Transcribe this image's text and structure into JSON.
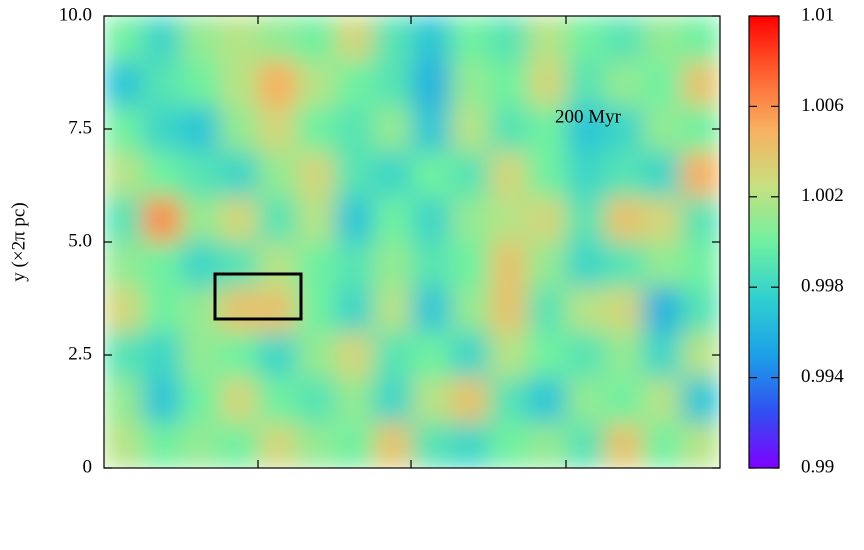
{
  "chart_data": {
    "type": "heatmap",
    "ylabel": "y (×2π pc)",
    "annotation": "200 Myr",
    "ylim": [
      0,
      10
    ],
    "yticks": [
      0,
      2.5,
      {
        "value": 5,
        "label": "5.0"
      },
      7.5,
      {
        "value": 10,
        "label": "10.0"
      }
    ],
    "zlim": [
      0.99,
      1.01
    ],
    "zticks": [
      0.99,
      0.994,
      0.998,
      1.002,
      1.006,
      1.01
    ],
    "colorscale": [
      "#7f00ff",
      "#3050f0",
      "#1ca0e8",
      "#30d0d0",
      "#70f0a0",
      "#c8e080",
      "#f8b060",
      "#ff6030",
      "#ff0000"
    ],
    "z": [
      [
        1.0,
        0.998,
        1.001,
        1.002,
        1.001,
        1.0,
        1.003,
        0.999,
        0.997,
        1.0,
        0.999,
        1.002,
        1.0,
        0.999,
        1.001,
        1.0
      ],
      [
        0.997,
        0.999,
        1.0,
        1.002,
        1.005,
        1.002,
        1.0,
        0.999,
        0.996,
        1.001,
        1.0,
        1.003,
        0.999,
        1.001,
        1.0,
        1.004
      ],
      [
        1.0,
        0.998,
        0.997,
        1.001,
        1.003,
        1.0,
        0.999,
        1.001,
        0.997,
        1.002,
        0.999,
        1.0,
        0.997,
        0.998,
        1.001,
        1.0
      ],
      [
        1.002,
        1.0,
        0.999,
        0.998,
        1.001,
        1.003,
        0.999,
        0.998,
        1.0,
        0.999,
        1.003,
        1.0,
        0.998,
        0.999,
        0.998,
        1.005
      ],
      [
        0.999,
        1.006,
        1.001,
        1.003,
        0.999,
        1.002,
        0.997,
        1.0,
        0.998,
        1.001,
        1.002,
        1.003,
        0.999,
        1.004,
        1.003,
        0.999
      ],
      [
        1.001,
        1.0,
        0.998,
        0.999,
        1.002,
        1.0,
        0.999,
        1.001,
        0.999,
        1.0,
        1.004,
        1.001,
        0.998,
        0.999,
        1.001,
        1.0
      ],
      [
        1.003,
        1.0,
        1.001,
        1.004,
        1.004,
        1.0,
        0.998,
        1.002,
        0.997,
        1.001,
        1.004,
        0.999,
        1.002,
        1.003,
        0.996,
        0.999
      ],
      [
        0.999,
        0.998,
        1.001,
        1.0,
        0.998,
        1.001,
        1.003,
        0.999,
        1.0,
        0.998,
        1.002,
        1.0,
        0.999,
        1.001,
        0.998,
        1.002
      ],
      [
        1.001,
        0.997,
        1.0,
        1.003,
        1.0,
        0.999,
        1.001,
        0.998,
        1.002,
        1.004,
        0.999,
        0.997,
        1.001,
        1.0,
        1.002,
        0.997
      ],
      [
        1.002,
        1.0,
        1.001,
        1.0,
        1.003,
        1.001,
        1.0,
        1.004,
        0.999,
        0.998,
        1.0,
        1.001,
        0.999,
        1.004,
        1.0,
        1.002
      ]
    ]
  }
}
